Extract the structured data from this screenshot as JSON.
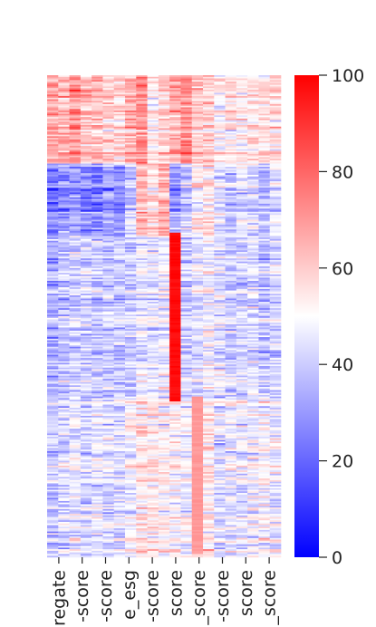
{
  "chart_data": {
    "type": "heatmap",
    "title": "",
    "xlabel": "",
    "ylabel": "",
    "colormap": "bwr",
    "colors": {
      "low": "#0000ff",
      "mid": "#ffffff",
      "high": "#ff0000"
    },
    "value_range": [
      0,
      100
    ],
    "num_rows": 300,
    "columns": [
      "regate",
      "-score",
      "-score",
      "e_esg",
      "-score",
      "score",
      "_score",
      "-score",
      "score",
      "_score"
    ],
    "colorbar": {
      "ticks": [
        100,
        80,
        60,
        40,
        20,
        0
      ],
      "tick_labels": [
        "100",
        "80",
        "60",
        "40",
        "20",
        "0"
      ]
    },
    "blocks": [
      {
        "rows": [
          0,
          55
        ],
        "column_means": [
          68,
          64,
          72,
          62,
          63,
          58,
          58,
          65,
          72,
          52,
          58,
          66,
          72,
          60,
          58,
          52,
          54,
          52,
          54,
          56,
          56
        ]
      },
      {
        "rows": [
          55,
          100
        ],
        "column_means": [
          22,
          28,
          30,
          26,
          24,
          30,
          28,
          40,
          62,
          56,
          64,
          30,
          38,
          52,
          56,
          44,
          38,
          44,
          42,
          36,
          44
        ]
      },
      {
        "rows": [
          100,
          200
        ],
        "column_means": [
          34,
          38,
          40,
          40,
          38,
          40,
          40,
          40,
          46,
          44,
          46,
          50,
          40,
          44,
          48,
          44,
          40,
          42,
          44,
          38,
          42
        ]
      },
      {
        "rows": [
          200,
          300
        ],
        "column_means": [
          40,
          44,
          46,
          42,
          46,
          44,
          44,
          48,
          56,
          54,
          52,
          50,
          48,
          54,
          54,
          42,
          46,
          46,
          48,
          50,
          48
        ]
      }
    ],
    "hotspots": [
      {
        "column": 11,
        "rows": [
          98,
          203
        ],
        "value": 100
      },
      {
        "column": 13,
        "rows": [
          200,
          298
        ],
        "value": 72
      }
    ]
  }
}
